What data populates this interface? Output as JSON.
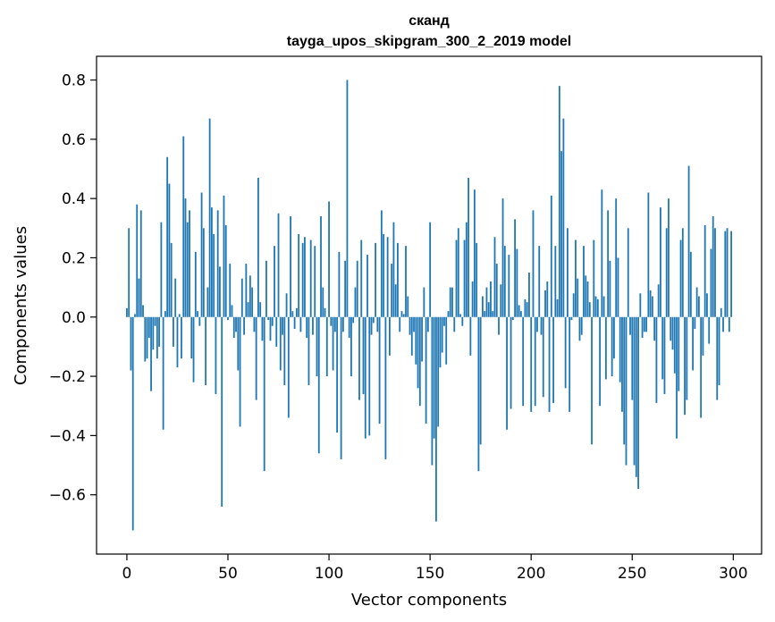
{
  "chart_data": {
    "type": "bar",
    "title_line1": "сканд",
    "title_line2": "tayga_upos_skipgram_300_2_2019 model",
    "xlabel": "Vector components",
    "ylabel": "Components values",
    "xlim": [
      -15,
      314
    ],
    "ylim": [
      -0.8,
      0.88
    ],
    "xticks": [
      0,
      50,
      100,
      150,
      200,
      250,
      300
    ],
    "yticks": [
      -0.6,
      -0.4,
      -0.2,
      0.0,
      0.2,
      0.4,
      0.6,
      0.8
    ],
    "bar_color": "#1f77b4",
    "grid": false,
    "values": [
      0.03,
      0.3,
      -0.18,
      -0.72,
      0.01,
      0.38,
      0.13,
      0.36,
      0.04,
      -0.15,
      -0.14,
      -0.07,
      -0.25,
      -0.11,
      -0.03,
      -0.14,
      -0.1,
      0.32,
      -0.38,
      0.02,
      0.54,
      0.45,
      0.25,
      -0.1,
      0.13,
      -0.17,
      0.01,
      -0.14,
      0.61,
      0.4,
      0.32,
      0.36,
      -0.14,
      -0.22,
      0.22,
      0.02,
      -0.03,
      0.42,
      0.3,
      -0.23,
      0.1,
      0.67,
      0.37,
      0.28,
      -0.26,
      0.36,
      0.17,
      -0.64,
      0.41,
      0.31,
      -0.01,
      0.18,
      0.04,
      -0.07,
      -0.05,
      -0.18,
      -0.37,
      0.13,
      -0.06,
      0.18,
      0.05,
      0.14,
      0.1,
      -0.05,
      -0.28,
      0.47,
      0.05,
      -0.08,
      -0.52,
      0.19,
      -0.01,
      -0.08,
      -0.03,
      0.24,
      -0.1,
      0.35,
      -0.18,
      -0.06,
      -0.23,
      0.08,
      -0.34,
      0.34,
      0.02,
      -0.04,
      0.03,
      0.28,
      -0.05,
      0.25,
      0.27,
      -0.07,
      -0.23,
      0.26,
      -0.06,
      0.24,
      -0.2,
      -0.46,
      0.34,
      0.1,
      0.03,
      -0.2,
      0.39,
      -0.03,
      -0.18,
      -0.05,
      -0.39,
      0.22,
      -0.48,
      -0.05,
      0.19,
      0.8,
      -0.07,
      -0.2,
      -0.02,
      0.1,
      0.19,
      -0.28,
      0.26,
      -0.26,
      -0.41,
      0.21,
      -0.4,
      -0.06,
      -0.02,
      0.25,
      -0.05,
      -0.36,
      0.36,
      0.28,
      -0.48,
      0.27,
      -0.13,
      0.18,
      0.32,
      0.11,
      0.25,
      -0.05,
      0.02,
      0.01,
      0.24,
      0.07,
      -0.06,
      -0.13,
      -0.05,
      -0.16,
      -0.24,
      -0.3,
      -0.15,
      0.1,
      -0.36,
      -0.05,
      0.32,
      -0.5,
      -0.41,
      -0.69,
      -0.37,
      -0.17,
      -0.12,
      -0.03,
      -0.16,
      0.02,
      0.1,
      0.1,
      -0.05,
      0.26,
      0.3,
      0.01,
      -0.03,
      0.26,
      0.32,
      0.47,
      -0.13,
      0.12,
      0.43,
      0.25,
      -0.52,
      -0.43,
      0.07,
      0.02,
      0.1,
      0.05,
      0.12,
      0.02,
      0.27,
      0.18,
      -0.06,
      0.11,
      0.4,
      0.24,
      -0.38,
      0.21,
      -0.31,
      -0.01,
      0.33,
      0.23,
      0.04,
      0.02,
      -0.3,
      0.06,
      0.05,
      0.15,
      -0.32,
      0.36,
      -0.3,
      -0.05,
      0.24,
      -0.06,
      -0.27,
      0.09,
      0.12,
      -0.32,
      0.41,
      -0.29,
      0.24,
      0.06,
      0.78,
      0.56,
      0.67,
      -0.24,
      0.3,
      -0.32,
      -0.01,
      0.08,
      0.26,
      0.13,
      -0.08,
      -0.06,
      0.24,
      0.14,
      0.12,
      0.05,
      -0.43,
      0.26,
      0.07,
      0.06,
      -0.3,
      0.43,
      0.07,
      -0.21,
      0.36,
      0.19,
      -0.2,
      -0.14,
      0.4,
      0.2,
      -0.22,
      -0.32,
      -0.43,
      -0.5,
      0.3,
      -0.06,
      -0.28,
      -0.5,
      -0.54,
      -0.58,
      0.08,
      -0.07,
      -0.05,
      -0.05,
      0.42,
      0.09,
      0.07,
      -0.08,
      -0.29,
      0.11,
      0.37,
      -0.21,
      -0.26,
      0.3,
      0.4,
      -0.08,
      -0.11,
      -0.19,
      -0.41,
      -0.25,
      0.26,
      0.3,
      -0.33,
      -0.28,
      0.51,
      0.22,
      -0.18,
      -0.04,
      0.1,
      0.07,
      -0.34,
      -0.13,
      0.31,
      0.08,
      -0.09,
      0.23,
      0.34,
      0.3,
      -0.28,
      -0.23,
      0.03,
      -0.05,
      0.29,
      0.3,
      -0.05,
      0.29
    ]
  }
}
